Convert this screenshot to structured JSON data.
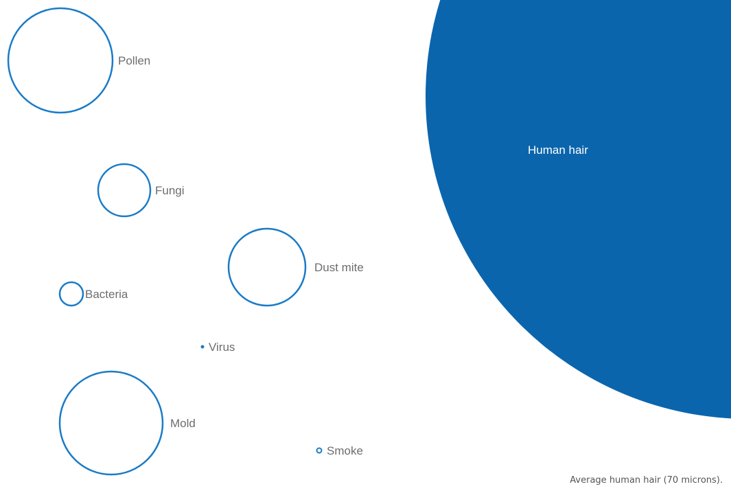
{
  "colors": {
    "outline": "#1a7bc6",
    "hair_fill": "#0b65ad",
    "label_text": "#6d6d6d",
    "hair_text": "#ffffff"
  },
  "particles": {
    "pollen": "Pollen",
    "fungi": "Fungi",
    "dust_mite": "Dust mite",
    "bacteria": "Bacteria",
    "virus": "Virus",
    "mold": "Mold",
    "smoke": "Smoke"
  },
  "hair": {
    "label": "Human hair"
  },
  "caption": "Average human hair (70 microns)."
}
